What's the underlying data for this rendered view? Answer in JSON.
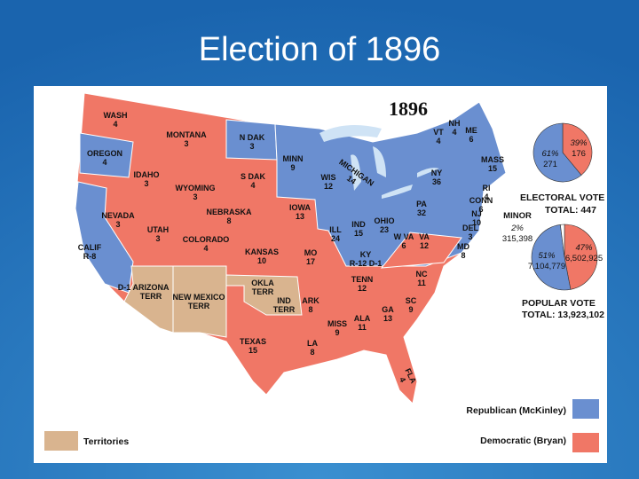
{
  "title": "Election of 1896",
  "map": {
    "year": "1896",
    "states": [
      {
        "name": "WASH",
        "votes": "4"
      },
      {
        "name": "MONTANA",
        "votes": "3"
      },
      {
        "name": "N DAK",
        "votes": "3"
      },
      {
        "name": "MINN",
        "votes": "9"
      },
      {
        "name": "OREGON",
        "votes": "4"
      },
      {
        "name": "IDAHO",
        "votes": "3"
      },
      {
        "name": "WYOMING",
        "votes": "3"
      },
      {
        "name": "S DAK",
        "votes": "4"
      },
      {
        "name": "WIS",
        "votes": "12"
      },
      {
        "name": "MICHIGAN",
        "votes": "14"
      },
      {
        "name": "NEVADA",
        "votes": "3"
      },
      {
        "name": "UTAH",
        "votes": "3"
      },
      {
        "name": "COLORADO",
        "votes": "4"
      },
      {
        "name": "NEBRASKA",
        "votes": "8"
      },
      {
        "name": "IOWA",
        "votes": "13"
      },
      {
        "name": "ILL",
        "votes": "24"
      },
      {
        "name": "IND",
        "votes": "15"
      },
      {
        "name": "OHIO",
        "votes": "23"
      },
      {
        "name": "CALIF",
        "votes": "R-8"
      },
      {
        "name": "KANSAS",
        "votes": "10"
      },
      {
        "name": "MO",
        "votes": "17"
      },
      {
        "name": "KY",
        "votes": "R-12 D-1"
      },
      {
        "name": "W VA",
        "votes": "6"
      },
      {
        "name": "VA",
        "votes": "12"
      },
      {
        "name": "PA",
        "votes": "32"
      },
      {
        "name": "NY",
        "votes": "36"
      },
      {
        "name": "ARIZONA",
        "votes": "TERR"
      },
      {
        "name": "NEW MEXICO",
        "votes": "TERR"
      },
      {
        "name": "OKLA",
        "votes": "TERR"
      },
      {
        "name": "IND",
        "votes": "TERR"
      },
      {
        "name": "ARK",
        "votes": "8"
      },
      {
        "name": "TENN",
        "votes": "12"
      },
      {
        "name": "NC",
        "votes": "11"
      },
      {
        "name": "SC",
        "votes": "9"
      },
      {
        "name": "GA",
        "votes": "13"
      },
      {
        "name": "ALA",
        "votes": "11"
      },
      {
        "name": "MISS",
        "votes": "9"
      },
      {
        "name": "LA",
        "votes": "8"
      },
      {
        "name": "TEXAS",
        "votes": "15"
      },
      {
        "name": "FLA",
        "votes": "4"
      },
      {
        "name": "VT",
        "votes": "4"
      },
      {
        "name": "NH",
        "votes": "4"
      },
      {
        "name": "ME",
        "votes": "6"
      },
      {
        "name": "MASS",
        "votes": "15"
      },
      {
        "name": "RI",
        "votes": "4"
      },
      {
        "name": "CONN",
        "votes": "6"
      },
      {
        "name": "NJ",
        "votes": "10"
      },
      {
        "name": "DEL",
        "votes": "3"
      },
      {
        "name": "MD",
        "votes": "8"
      },
      {
        "name": "D-1",
        "votes": ""
      }
    ]
  },
  "electoral_vote": {
    "title": "ELECTORAL VOTE",
    "total": "TOTAL: 447",
    "slices": [
      {
        "percent": 39,
        "percent_label": "39%",
        "votes": "176",
        "color": "#f07766"
      },
      {
        "percent": 61,
        "percent_label": "61%",
        "votes": "271",
        "color": "#6a8fd0"
      }
    ]
  },
  "popular_vote": {
    "title": "POPULAR VOTE",
    "total": "TOTAL: 13,923,102",
    "minor_label": "MINOR",
    "slices": [
      {
        "percent": 47,
        "percent_label": "47%",
        "votes": "6,502,925",
        "color": "#f07766"
      },
      {
        "percent": 51,
        "percent_label": "51%",
        "votes": "7,104,779",
        "color": "#6a8fd0"
      },
      {
        "percent": 2,
        "percent_label": "2%",
        "votes": "315,398",
        "color": "#ffffff"
      }
    ]
  },
  "legend": {
    "republican": "Republican (McKinley)",
    "democratic": "Democratic (Bryan)",
    "territories": "Territories"
  }
}
